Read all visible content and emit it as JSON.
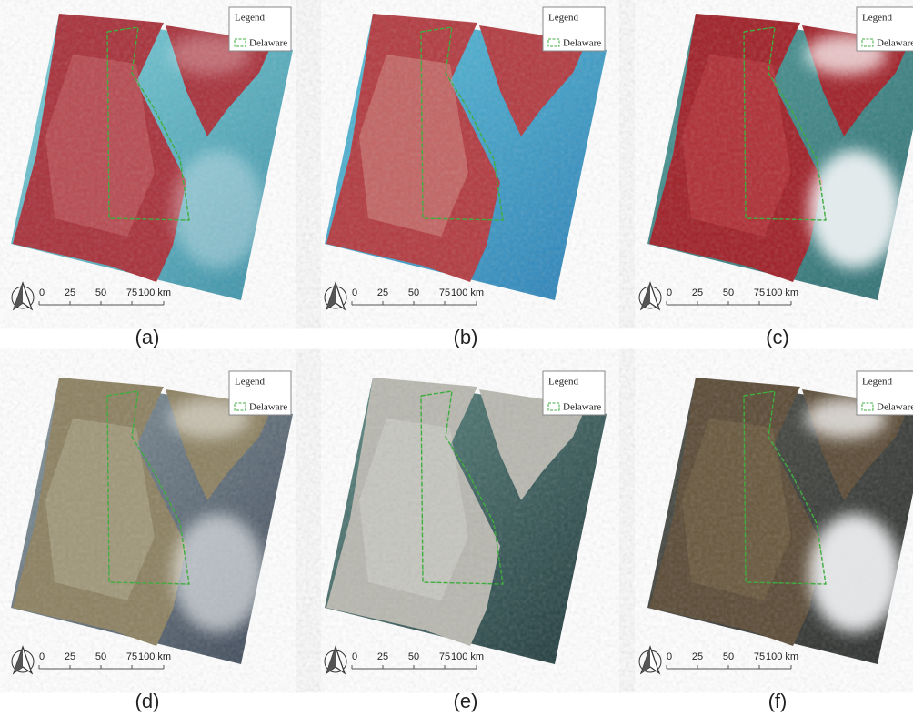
{
  "panels": [
    {
      "label": "(a)",
      "legend": {
        "title": "Legend",
        "item": "Delaware"
      },
      "scale": [
        "0",
        "25",
        "50",
        "75",
        "100 km"
      ]
    },
    {
      "label": "(b)",
      "legend": {
        "title": "Legend",
        "item": "Delaware"
      },
      "scale": [
        "0",
        "25",
        "50",
        "75",
        "100 km"
      ]
    },
    {
      "label": "(c)",
      "legend": {
        "title": "Legend",
        "item": "Delaware"
      },
      "scale": [
        "0",
        "25",
        "50",
        "75",
        "100 km"
      ]
    },
    {
      "label": "(d)",
      "legend": {
        "title": "Legend",
        "item": "Delaware"
      },
      "scale": [
        "0",
        "25",
        "50",
        "75",
        "100 km"
      ]
    },
    {
      "label": "(e)",
      "legend": {
        "title": "Legend",
        "item": "Delaware"
      },
      "scale": [
        "0",
        "25",
        "50",
        "75",
        "100 km"
      ]
    },
    {
      "label": "(f)",
      "legend": {
        "title": "Legend",
        "item": "Delaware"
      },
      "scale": [
        "0",
        "25",
        "50",
        "75",
        "100 km"
      ]
    }
  ]
}
